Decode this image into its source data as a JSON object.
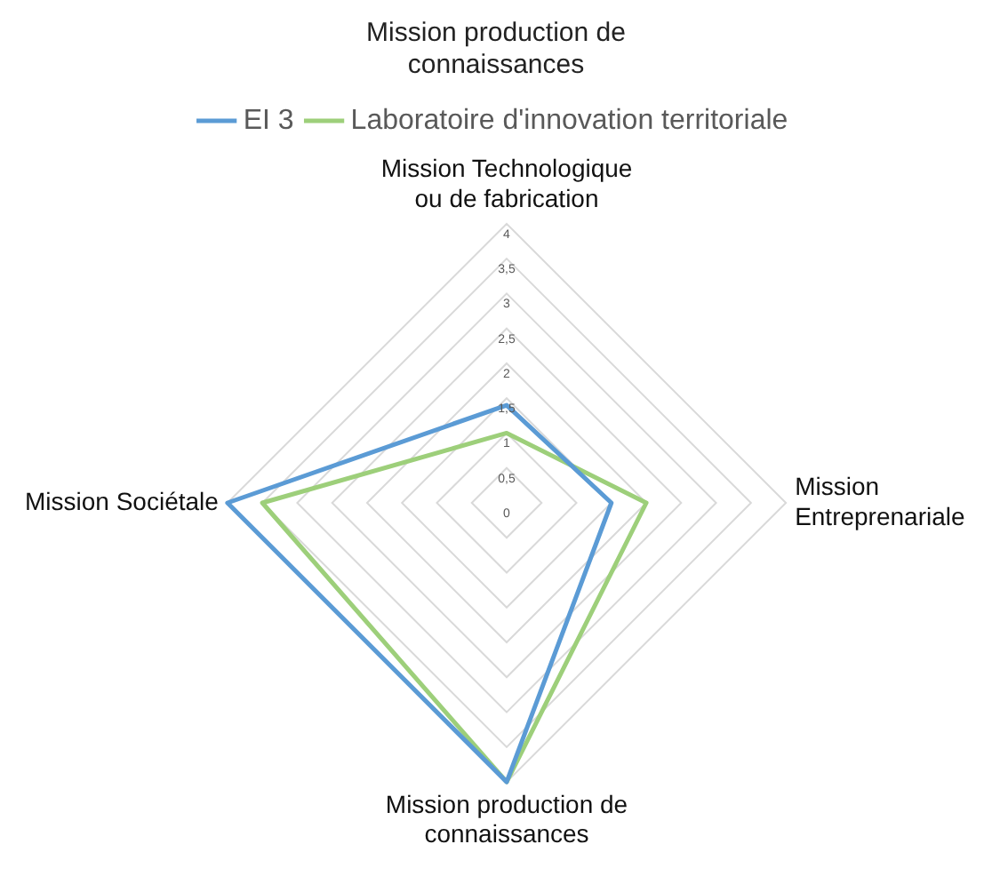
{
  "chart_data": {
    "type": "radar",
    "title": "Mission production de connaissances",
    "categories": [
      "Mission Technologique ou de fabrication",
      "Mission Entreprenariale",
      "Mission production de connaissances",
      "Mission Sociétale"
    ],
    "series": [
      {
        "name": "EI 3",
        "color": "#5b9bd5",
        "values": [
          1.4,
          1.5,
          4,
          4
        ]
      },
      {
        "name": "Laboratoire d'innovation territoriale",
        "color": "#9dcf7a",
        "values": [
          1,
          2,
          4,
          3.5
        ]
      }
    ],
    "ylim": [
      0,
      4
    ],
    "yticks": [
      0,
      {
        "value": 0.5,
        "label": "0,5"
      },
      1,
      {
        "value": 1.5,
        "label": "1,5"
      },
      2,
      {
        "value": 2.5,
        "label": "2,5"
      },
      3,
      {
        "value": 3.5,
        "label": "3,5"
      },
      4
    ],
    "grid": true,
    "legend": "top",
    "marker": "none"
  }
}
